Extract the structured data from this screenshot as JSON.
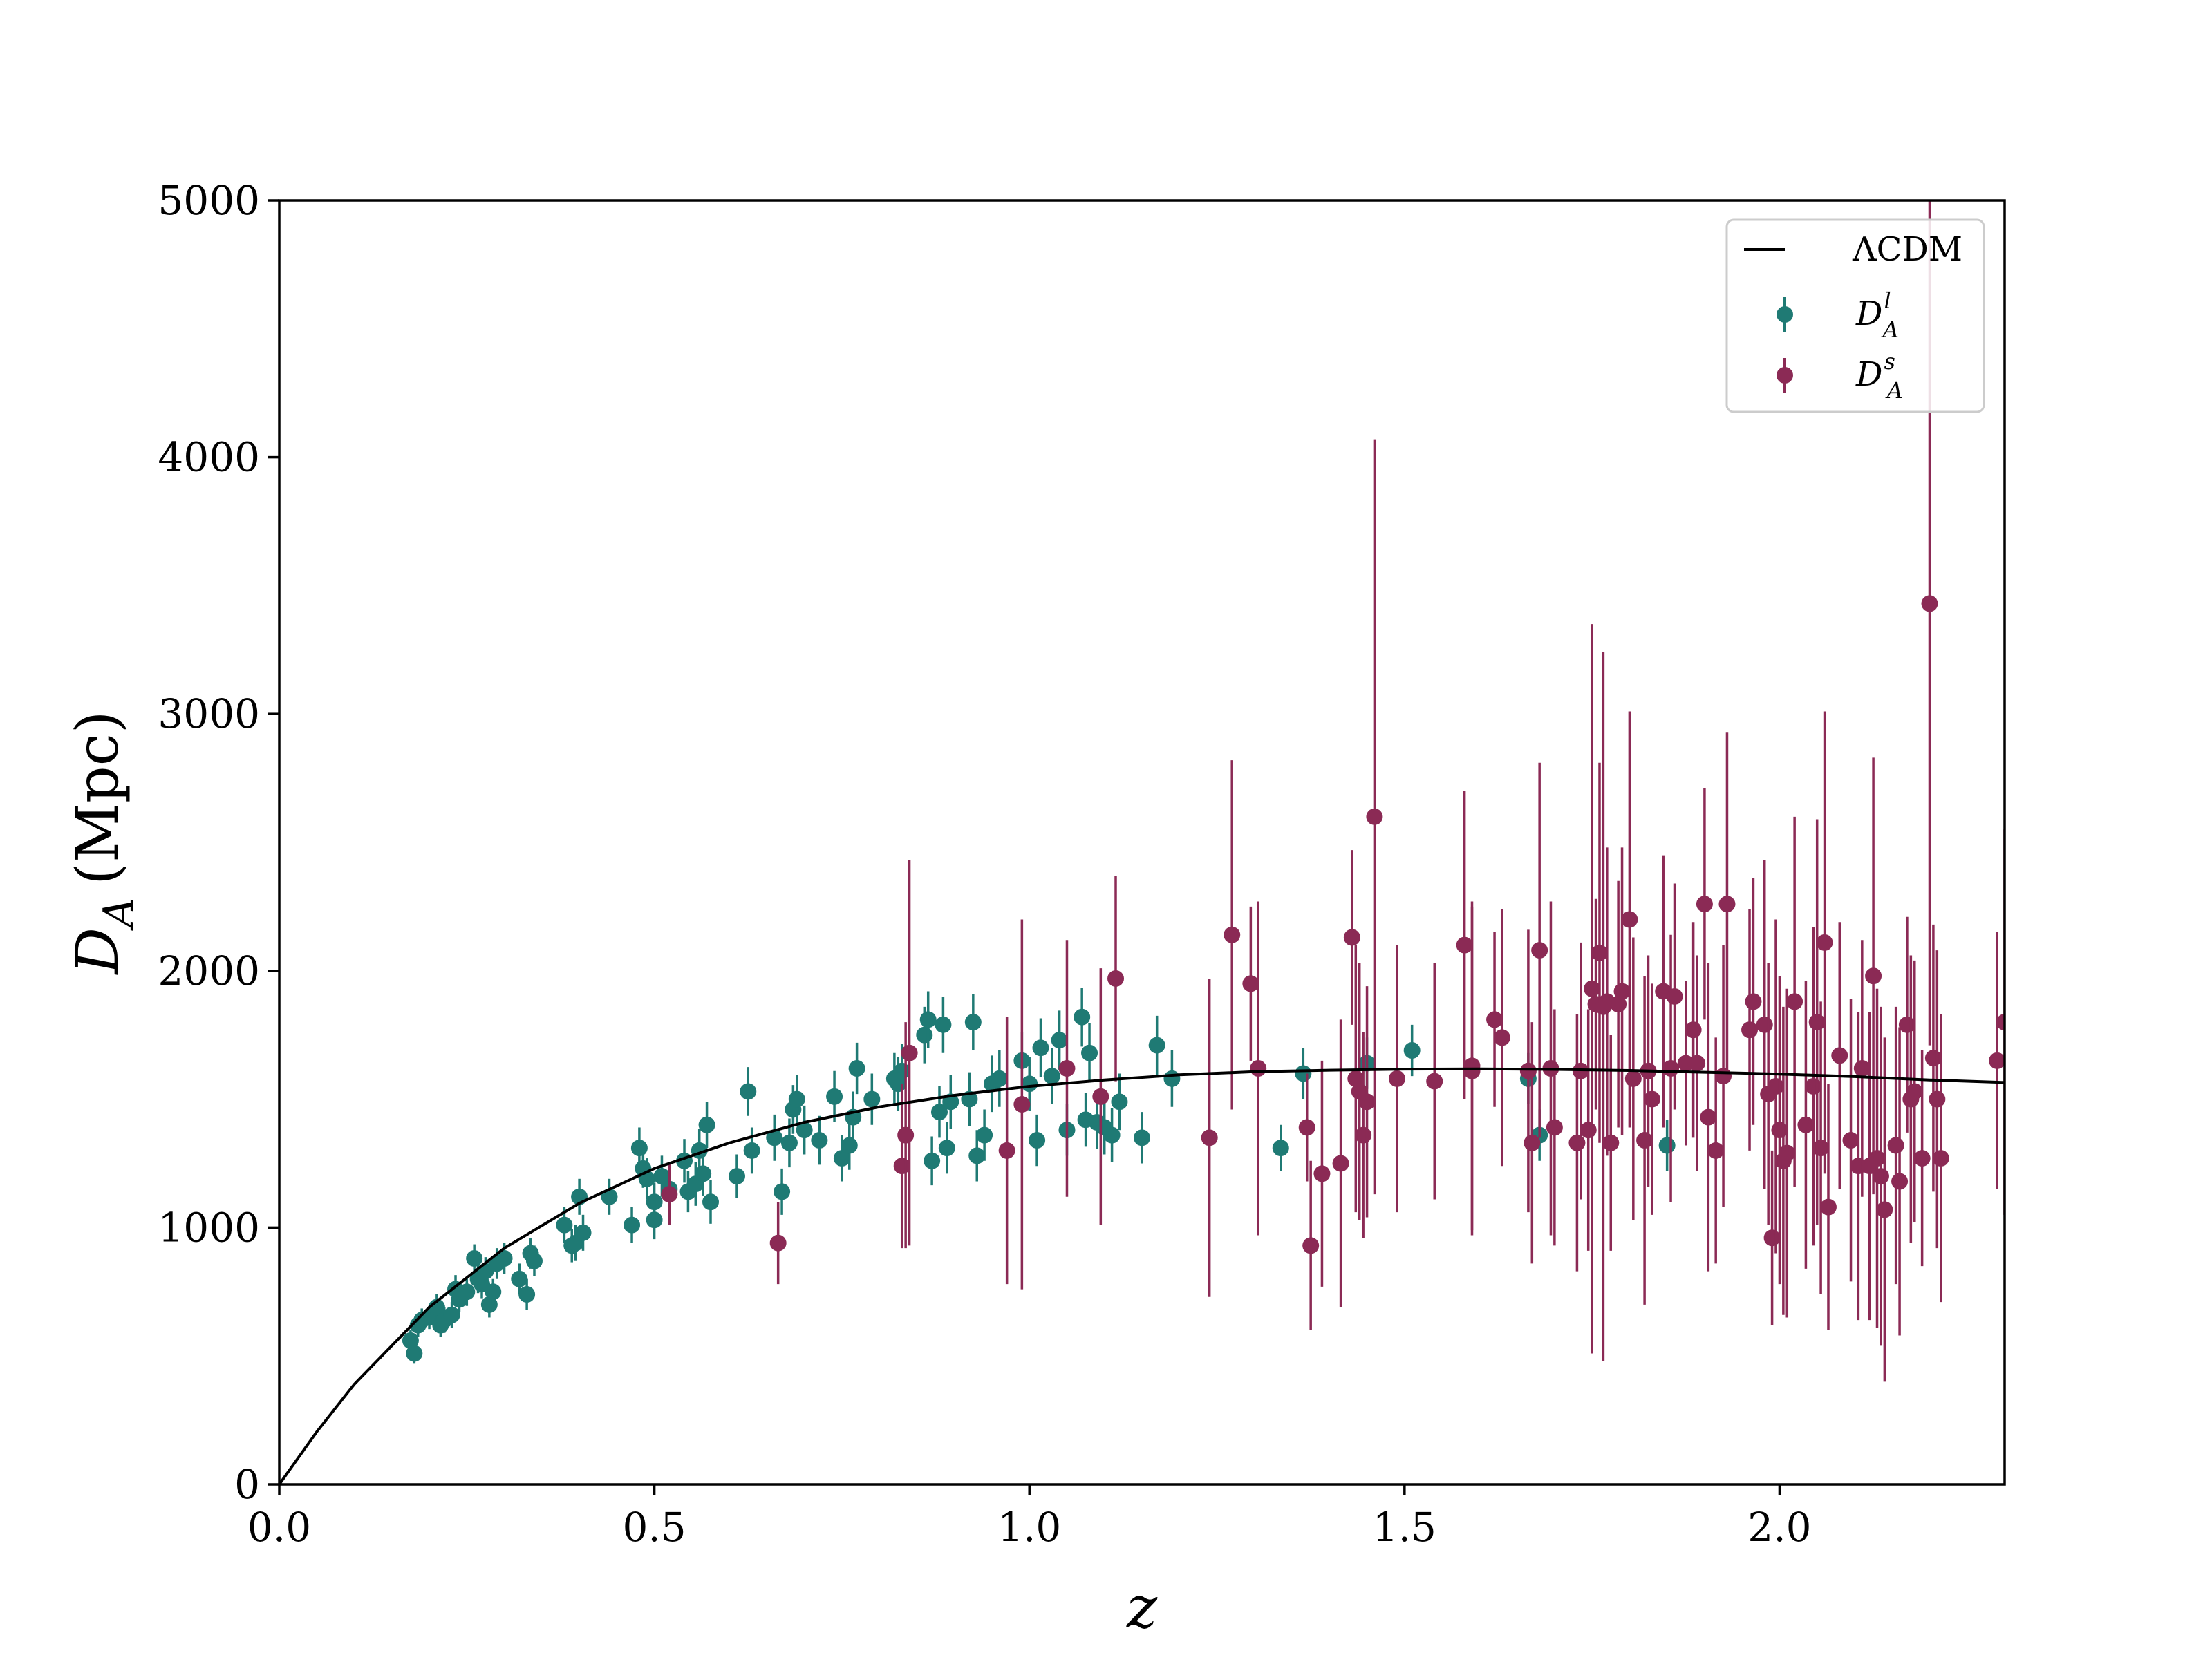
{
  "chart_data": {
    "type": "scatter",
    "title": "",
    "xlabel": "z",
    "ylabel": {
      "symbol": "D",
      "subscript": "A",
      "unit": "(Mpc)"
    },
    "xlim": [
      0,
      2.3
    ],
    "ylim": [
      0,
      5000
    ],
    "xticks": [
      0.0,
      0.5,
      1.0,
      1.5,
      2.0
    ],
    "xtick_labels": [
      "0.0",
      "0.5",
      "1.0",
      "1.5",
      "2.0"
    ],
    "yticks": [
      0,
      1000,
      2000,
      3000,
      4000,
      5000
    ],
    "ytick_labels": [
      "0",
      "1000",
      "2000",
      "3000",
      "4000",
      "5000"
    ],
    "grid": false,
    "legend": {
      "position": "top-right",
      "entries": [
        {
          "label": "ΛCDM",
          "kind": "line",
          "color": "#000000"
        },
        {
          "label": "D",
          "sub": "A",
          "sup": "l",
          "kind": "marker",
          "color": "#1f7a74"
        },
        {
          "label": "D",
          "sub": "A",
          "sup": "s",
          "kind": "marker",
          "color": "#8b2a55"
        }
      ]
    },
    "model_curve": {
      "name": "ΛCDM",
      "color": "#000000",
      "points": [
        [
          0,
          0
        ],
        [
          0.05,
          205
        ],
        [
          0.1,
          390
        ],
        [
          0.2,
          690
        ],
        [
          0.3,
          920
        ],
        [
          0.4,
          1095
        ],
        [
          0.5,
          1230
        ],
        [
          0.6,
          1330
        ],
        [
          0.7,
          1410
        ],
        [
          0.8,
          1470
        ],
        [
          0.9,
          1515
        ],
        [
          1.0,
          1550
        ],
        [
          1.1,
          1575
        ],
        [
          1.2,
          1595
        ],
        [
          1.3,
          1607
        ],
        [
          1.4,
          1613
        ],
        [
          1.5,
          1617
        ],
        [
          1.6,
          1618
        ],
        [
          1.7,
          1616
        ],
        [
          1.8,
          1612
        ],
        [
          1.9,
          1605
        ],
        [
          2.0,
          1598
        ],
        [
          2.1,
          1588
        ],
        [
          2.2,
          1575
        ],
        [
          2.3,
          1565
        ]
      ]
    },
    "series": [
      {
        "name": "D_A^l",
        "color": "#1f7a74",
        "points": [
          [
            0.175,
            560,
            40
          ],
          [
            0.18,
            510,
            40
          ],
          [
            0.185,
            620,
            45
          ],
          [
            0.19,
            640,
            45
          ],
          [
            0.2,
            650,
            45
          ],
          [
            0.21,
            690,
            50
          ],
          [
            0.215,
            620,
            45
          ],
          [
            0.22,
            640,
            50
          ],
          [
            0.23,
            660,
            50
          ],
          [
            0.235,
            760,
            55
          ],
          [
            0.24,
            720,
            50
          ],
          [
            0.25,
            750,
            55
          ],
          [
            0.26,
            880,
            55
          ],
          [
            0.265,
            800,
            55
          ],
          [
            0.27,
            780,
            55
          ],
          [
            0.275,
            830,
            55
          ],
          [
            0.28,
            700,
            50
          ],
          [
            0.285,
            750,
            50
          ],
          [
            0.29,
            860,
            60
          ],
          [
            0.3,
            880,
            60
          ],
          [
            0.32,
            800,
            60
          ],
          [
            0.33,
            740,
            60
          ],
          [
            0.335,
            900,
            60
          ],
          [
            0.34,
            870,
            60
          ],
          [
            0.38,
            1010,
            70
          ],
          [
            0.39,
            930,
            65
          ],
          [
            0.395,
            940,
            70
          ],
          [
            0.4,
            1120,
            70
          ],
          [
            0.405,
            980,
            70
          ],
          [
            0.44,
            1120,
            70
          ],
          [
            0.47,
            1010,
            70
          ],
          [
            0.48,
            1310,
            80
          ],
          [
            0.485,
            1230,
            75
          ],
          [
            0.49,
            1190,
            80
          ],
          [
            0.5,
            1100,
            75
          ],
          [
            0.5,
            1030,
            75
          ],
          [
            0.51,
            1200,
            80
          ],
          [
            0.52,
            1150,
            80
          ],
          [
            0.54,
            1260,
            85
          ],
          [
            0.545,
            1140,
            80
          ],
          [
            0.555,
            1170,
            85
          ],
          [
            0.56,
            1300,
            85
          ],
          [
            0.565,
            1210,
            85
          ],
          [
            0.57,
            1400,
            90
          ],
          [
            0.575,
            1100,
            85
          ],
          [
            0.61,
            1200,
            85
          ],
          [
            0.625,
            1530,
            95
          ],
          [
            0.63,
            1300,
            90
          ],
          [
            0.66,
            1350,
            90
          ],
          [
            0.67,
            1140,
            90
          ],
          [
            0.68,
            1330,
            95
          ],
          [
            0.685,
            1460,
            95
          ],
          [
            0.69,
            1500,
            95
          ],
          [
            0.7,
            1380,
            95
          ],
          [
            0.72,
            1340,
            95
          ],
          [
            0.74,
            1510,
            100
          ],
          [
            0.75,
            1270,
            90
          ],
          [
            0.76,
            1320,
            95
          ],
          [
            0.765,
            1430,
            100
          ],
          [
            0.77,
            1620,
            100
          ],
          [
            0.79,
            1500,
            100
          ],
          [
            0.82,
            1580,
            100
          ],
          [
            0.825,
            1560,
            105
          ],
          [
            0.83,
            1610,
            105
          ],
          [
            0.86,
            1750,
            110
          ],
          [
            0.865,
            1810,
            110
          ],
          [
            0.87,
            1260,
            95
          ],
          [
            0.88,
            1450,
            100
          ],
          [
            0.885,
            1790,
            110
          ],
          [
            0.89,
            1310,
            100
          ],
          [
            0.895,
            1490,
            105
          ],
          [
            0.92,
            1500,
            105
          ],
          [
            0.925,
            1800,
            110
          ],
          [
            0.93,
            1280,
            100
          ],
          [
            0.94,
            1360,
            100
          ],
          [
            0.95,
            1560,
            110
          ],
          [
            0.96,
            1580,
            110
          ],
          [
            0.99,
            1650,
            110
          ],
          [
            1.0,
            1560,
            105
          ],
          [
            1.01,
            1340,
            100
          ],
          [
            1.015,
            1700,
            115
          ],
          [
            1.03,
            1590,
            110
          ],
          [
            1.04,
            1730,
            115
          ],
          [
            1.05,
            1380,
            100
          ],
          [
            1.07,
            1820,
            115
          ],
          [
            1.075,
            1420,
            105
          ],
          [
            1.08,
            1680,
            115
          ],
          [
            1.09,
            1410,
            105
          ],
          [
            1.1,
            1390,
            105
          ],
          [
            1.11,
            1360,
            105
          ],
          [
            1.12,
            1490,
            110
          ],
          [
            1.15,
            1350,
            100
          ],
          [
            1.17,
            1710,
            115
          ],
          [
            1.19,
            1580,
            110
          ],
          [
            1.335,
            1310,
            90
          ],
          [
            1.365,
            1600,
            100
          ],
          [
            1.45,
            1640,
            100
          ],
          [
            1.51,
            1690,
            100
          ],
          [
            1.665,
            1580,
            100
          ],
          [
            1.68,
            1360,
            100
          ],
          [
            1.85,
            1320,
            100
          ]
        ]
      },
      {
        "name": "D_A^s",
        "color": "#8b2a55",
        "points": [
          [
            0.52,
            1130,
            120
          ],
          [
            0.665,
            940,
            160
          ],
          [
            0.83,
            1240,
            320
          ],
          [
            0.835,
            1360,
            440
          ],
          [
            0.84,
            1680,
            750
          ],
          [
            0.97,
            1300,
            520
          ],
          [
            0.99,
            1480,
            720
          ],
          [
            1.05,
            1620,
            500
          ],
          [
            1.095,
            1510,
            500
          ],
          [
            1.115,
            1970,
            400
          ],
          [
            1.24,
            1350,
            620
          ],
          [
            1.27,
            2140,
            680
          ],
          [
            1.295,
            1950,
            300
          ],
          [
            1.305,
            1620,
            650
          ],
          [
            1.37,
            1390,
            210
          ],
          [
            1.375,
            930,
            330
          ],
          [
            1.39,
            1210,
            440
          ],
          [
            1.415,
            1250,
            560
          ],
          [
            1.43,
            2130,
            340
          ],
          [
            1.435,
            1580,
            520
          ],
          [
            1.44,
            1530,
            500
          ],
          [
            1.445,
            1360,
            400
          ],
          [
            1.45,
            1490,
            450
          ],
          [
            1.46,
            2600,
            1470
          ],
          [
            1.49,
            1580,
            520
          ],
          [
            1.54,
            1570,
            460
          ],
          [
            1.58,
            2100,
            600
          ],
          [
            1.59,
            1630,
            640
          ],
          [
            1.59,
            1610,
            640
          ],
          [
            1.62,
            1810,
            340
          ],
          [
            1.63,
            1740,
            500
          ],
          [
            1.665,
            1610,
            550
          ],
          [
            1.67,
            1330,
            470
          ],
          [
            1.68,
            2080,
            730
          ],
          [
            1.695,
            1620,
            650
          ],
          [
            1.7,
            1390,
            460
          ],
          [
            1.73,
            1330,
            500
          ],
          [
            1.735,
            1610,
            500
          ],
          [
            1.745,
            1380,
            470
          ],
          [
            1.75,
            1930,
            1420
          ],
          [
            1.755,
            1870,
            410
          ],
          [
            1.76,
            2070,
            740
          ],
          [
            1.765,
            1860,
            1380
          ],
          [
            1.77,
            1880,
            600
          ],
          [
            1.775,
            1330,
            420
          ],
          [
            1.785,
            1870,
            480
          ],
          [
            1.79,
            1920,
            560
          ],
          [
            1.8,
            2200,
            810
          ],
          [
            1.805,
            1580,
            550
          ],
          [
            1.82,
            1340,
            640
          ],
          [
            1.825,
            1610,
            450
          ],
          [
            1.83,
            1500,
            450
          ],
          [
            1.845,
            1920,
            530
          ],
          [
            1.855,
            1620,
            520
          ],
          [
            1.86,
            1900,
            440
          ],
          [
            1.875,
            1640,
            320
          ],
          [
            1.885,
            1770,
            420
          ],
          [
            1.89,
            1640,
            420
          ],
          [
            1.9,
            2260,
            450
          ],
          [
            1.905,
            1430,
            600
          ],
          [
            1.915,
            1300,
            440
          ],
          [
            1.925,
            1590,
            510
          ],
          [
            1.93,
            2260,
            670
          ],
          [
            1.96,
            1770,
            470
          ],
          [
            1.965,
            1880,
            480
          ],
          [
            1.98,
            1790,
            640
          ],
          [
            1.985,
            1520,
            510
          ],
          [
            1.99,
            960,
            340
          ],
          [
            1.995,
            1550,
            650
          ],
          [
            2.0,
            1380,
            600
          ],
          [
            2.005,
            1260,
            600
          ],
          [
            2.01,
            1290,
            640
          ],
          [
            2.02,
            1880,
            720
          ],
          [
            2.035,
            1400,
            560
          ],
          [
            2.045,
            1550,
            620
          ],
          [
            2.05,
            1800,
            790
          ],
          [
            2.055,
            1310,
            570
          ],
          [
            2.06,
            2110,
            900
          ],
          [
            2.065,
            1080,
            480
          ],
          [
            2.08,
            1670,
            520
          ],
          [
            2.095,
            1340,
            550
          ],
          [
            2.105,
            1240,
            600
          ],
          [
            2.11,
            1620,
            500
          ],
          [
            2.12,
            1240,
            600
          ],
          [
            2.125,
            1980,
            850
          ],
          [
            2.13,
            1270,
            660
          ],
          [
            2.135,
            1200,
            660
          ],
          [
            2.14,
            1070,
            670
          ],
          [
            2.155,
            1320,
            540
          ],
          [
            2.16,
            1180,
            600
          ],
          [
            2.17,
            1790,
            420
          ],
          [
            2.175,
            1500,
            560
          ],
          [
            2.18,
            1530,
            510
          ],
          [
            2.19,
            1270,
            420
          ],
          [
            2.2,
            3430,
            1720
          ],
          [
            2.205,
            1660,
            520
          ],
          [
            2.21,
            1500,
            580
          ],
          [
            2.215,
            1270,
            560
          ],
          [
            2.29,
            1650,
            500
          ],
          [
            2.3,
            1800,
            750
          ]
        ]
      }
    ]
  }
}
